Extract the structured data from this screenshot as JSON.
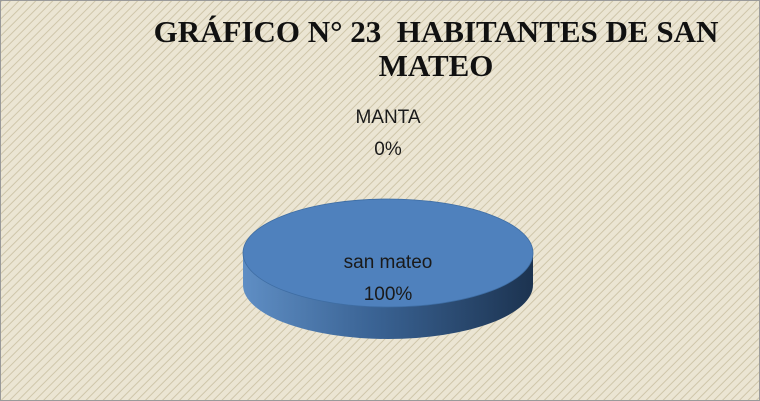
{
  "chart_data": {
    "type": "pie",
    "title": "GRÁFICO N° 23  HABITANTES DE SAN MATEO",
    "categories": [
      "san mateo",
      "MANTA"
    ],
    "values": [
      100,
      0
    ],
    "value_labels": [
      "100%",
      "0%"
    ],
    "colors": [
      "#4f81bd",
      "#c0504d"
    ],
    "three_d": true
  }
}
